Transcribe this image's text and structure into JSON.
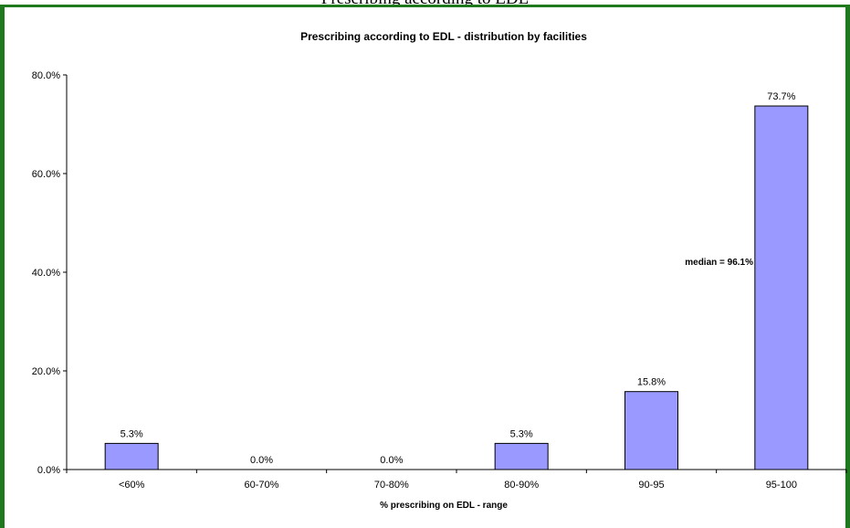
{
  "page": {
    "top_caption": "Prescribing according to EDL"
  },
  "colors": {
    "frame": "#1f7a1f",
    "bar_fill": "#9999ff",
    "bar_stroke": "#000000"
  },
  "chart_data": {
    "type": "bar",
    "title": "Prescribing according to EDL - distribution by facilities",
    "xlabel": "% prescribing on EDL - range",
    "ylabel": "",
    "categories": [
      "<60%",
      "60-70%",
      "70-80%",
      "80-90%",
      "90-95",
      "95-100"
    ],
    "values": [
      5.3,
      0.0,
      0.0,
      5.3,
      15.8,
      73.7
    ],
    "data_labels": [
      "5.3%",
      "0.0%",
      "0.0%",
      "5.3%",
      "15.8%",
      "73.7%"
    ],
    "ylim": [
      0,
      80
    ],
    "yticks": [
      0,
      20,
      40,
      60,
      80
    ],
    "ytick_labels": [
      "0.0%",
      "20.0%",
      "40.0%",
      "60.0%",
      "80.0%"
    ],
    "grid": false,
    "legend": "none",
    "annotation": "median = 96.1%"
  }
}
